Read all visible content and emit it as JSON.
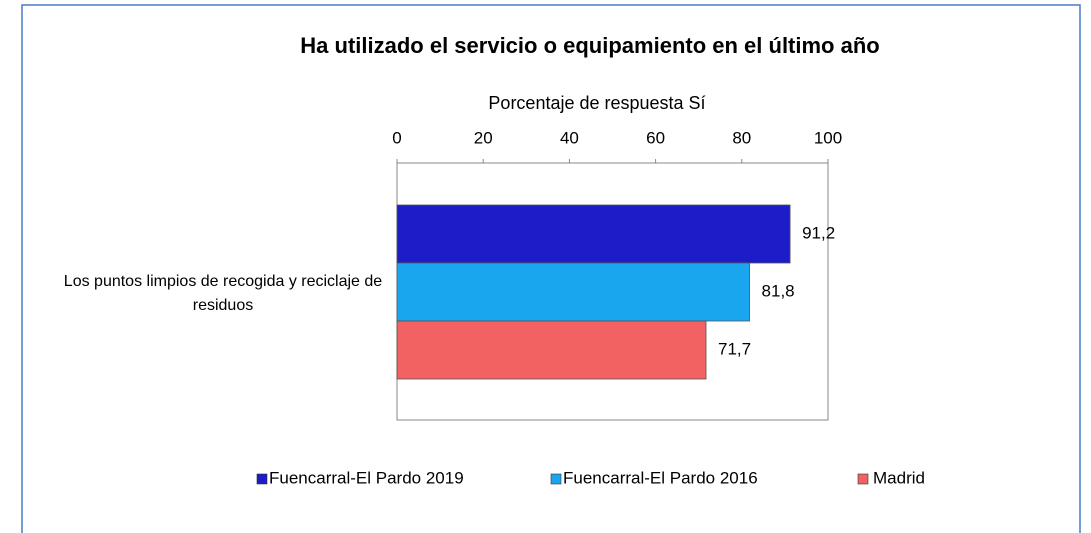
{
  "chart_data": {
    "type": "bar",
    "title": "Ha utilizado el servicio o equipamiento en el último año",
    "x_label": "Porcentaje de respuesta Sí",
    "categories": [
      "Los puntos limpios de recogida y reciclaje de residuos"
    ],
    "series": [
      {
        "name": "Fuencarral-El Pardo 2019",
        "color": "#1c1cc8",
        "values": [
          91.2
        ],
        "value_labels": [
          "91,2"
        ]
      },
      {
        "name": "Fuencarral-El Pardo 2016",
        "color": "#1aa6ee",
        "values": [
          81.8
        ],
        "value_labels": [
          "81,8"
        ]
      },
      {
        "name": "Madrid",
        "color": "#f26262",
        "values": [
          71.7
        ],
        "value_labels": [
          "71,7"
        ]
      }
    ],
    "xlim": [
      0,
      100
    ],
    "xticks": [
      0,
      20,
      40,
      60,
      80,
      100
    ],
    "legend": "bottom"
  }
}
